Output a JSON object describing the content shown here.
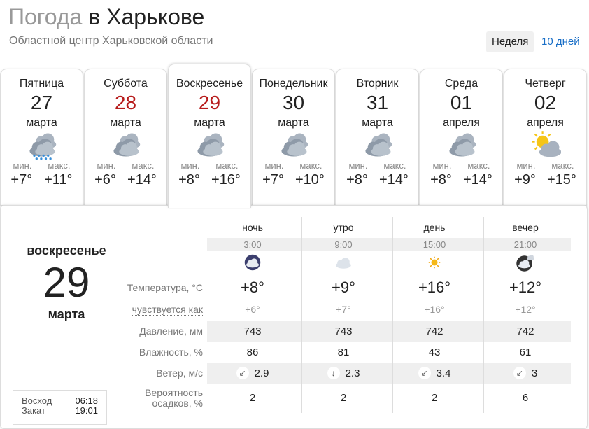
{
  "header": {
    "title_gray": "Погода",
    "title_black": "в Харькове",
    "subtitle": "Областной центр Харьковской области",
    "toggle_week": "Неделя",
    "toggle_10": "10 дней"
  },
  "colors": {
    "weekend": "#b71c1c",
    "link": "#1a6fc7"
  },
  "days": [
    {
      "name": "Пятница",
      "date": "27",
      "month": "марта",
      "icon": "cloudy-rain-icon",
      "min_label": "мин.",
      "max_label": "макс.",
      "min": "+7°",
      "max": "+11°"
    },
    {
      "name": "Суббота",
      "date": "28",
      "month": "марта",
      "icon": "overcast-icon",
      "min_label": "мин.",
      "max_label": "макс.",
      "min": "+6°",
      "max": "+14°"
    },
    {
      "name": "Воскресенье",
      "date": "29",
      "month": "марта",
      "icon": "overcast-icon",
      "min_label": "мин.",
      "max_label": "макс.",
      "min": "+8°",
      "max": "+16°"
    },
    {
      "name": "Понедельник",
      "date": "30",
      "month": "марта",
      "icon": "overcast-icon",
      "min_label": "мин.",
      "max_label": "макс.",
      "min": "+7°",
      "max": "+10°"
    },
    {
      "name": "Вторник",
      "date": "31",
      "month": "марта",
      "icon": "overcast-icon",
      "min_label": "мин.",
      "max_label": "макс.",
      "min": "+8°",
      "max": "+14°"
    },
    {
      "name": "Среда",
      "date": "01",
      "month": "апреля",
      "icon": "overcast-icon",
      "min_label": "мин.",
      "max_label": "макс.",
      "min": "+8°",
      "max": "+14°"
    },
    {
      "name": "Четверг",
      "date": "02",
      "month": "апреля",
      "icon": "partly-sunny-icon",
      "min_label": "мин.",
      "max_label": "макс.",
      "min": "+9°",
      "max": "+15°"
    }
  ],
  "selected": {
    "weekday": "воскресенье",
    "date": "29",
    "month": "марта",
    "sunrise_label": "Восход",
    "sunrise": "06:18",
    "sunset_label": "Закат",
    "sunset": "19:01"
  },
  "detail": {
    "labels": {
      "temp": "Температура, °C",
      "feels": "чувствуется как",
      "pressure": "Давление, мм",
      "humidity": "Влажность, %",
      "wind": "Ветер, м/с",
      "precip": "Вероятность осадков, %"
    },
    "periods": [
      {
        "name": "ночь",
        "time": "3:00",
        "icon": "night-cloudy-icon",
        "temp": "+8°",
        "feels": "+6°",
        "pressure": "743",
        "humidity": "86",
        "wind_dir": "↙",
        "wind": "2.9",
        "precip": "2"
      },
      {
        "name": "утро",
        "time": "9:00",
        "icon": "cloud-icon",
        "temp": "+9°",
        "feels": "+7°",
        "pressure": "743",
        "humidity": "81",
        "wind_dir": "↓",
        "wind": "2.3",
        "precip": "2"
      },
      {
        "name": "день",
        "time": "15:00",
        "icon": "sun-icon",
        "temp": "+16°",
        "feels": "+16°",
        "pressure": "742",
        "humidity": "43",
        "wind_dir": "↙",
        "wind": "3.4",
        "precip": "2"
      },
      {
        "name": "вечер",
        "time": "21:00",
        "icon": "night-partly-cloudy-icon",
        "temp": "+12°",
        "feels": "+12°",
        "pressure": "742",
        "humidity": "61",
        "wind_dir": "↙",
        "wind": "3",
        "precip": "6"
      }
    ]
  }
}
